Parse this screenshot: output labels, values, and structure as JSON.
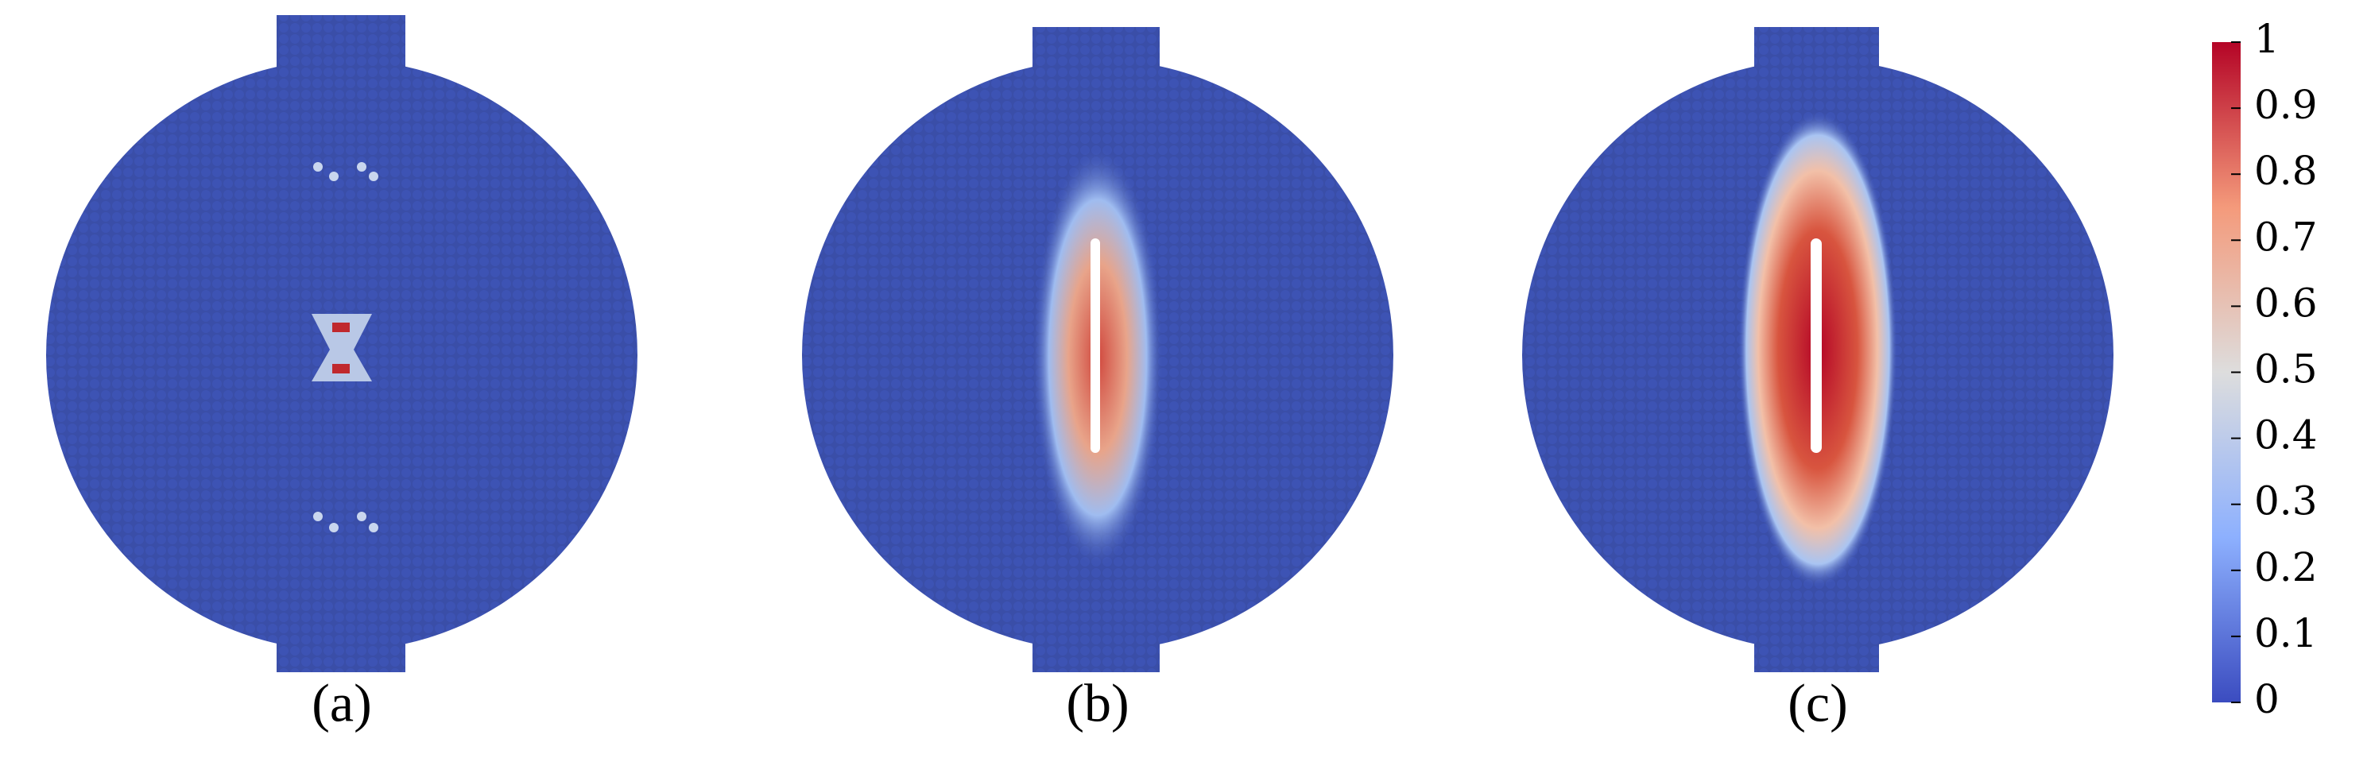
{
  "panels": [
    {
      "label": "(a)"
    },
    {
      "label": "(b)"
    },
    {
      "label": "(c)"
    }
  ],
  "colorbar": {
    "ticks": [
      0,
      0.1,
      0.2,
      0.3,
      0.4,
      0.5,
      0.6,
      0.7,
      0.8,
      0.9,
      1
    ]
  }
}
